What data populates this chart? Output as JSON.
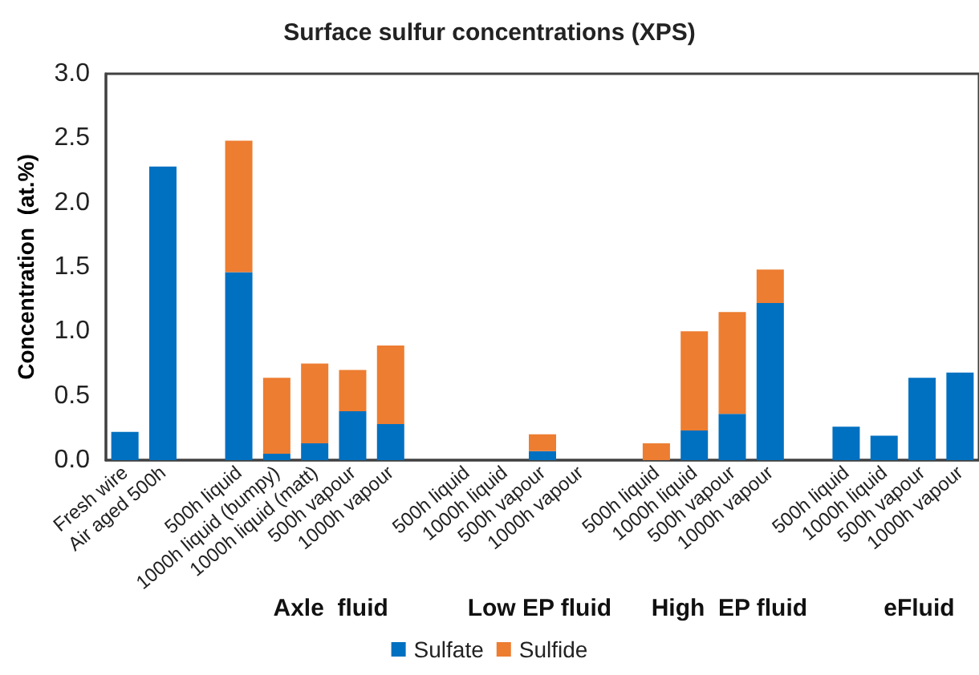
{
  "chart_data": {
    "type": "bar",
    "title": "Surface sulfur concentrations (XPS)",
    "ylabel": "Concentration  (at.%)",
    "categories": [
      "Fresh wire",
      "Air aged 500h",
      null,
      "500h liquid",
      "1000h liquid (bumpy)",
      "1000h liquid (matt)",
      "500h vapour",
      "1000h vapour",
      null,
      "500h liquid",
      "1000h liquid",
      "500h vapour",
      "1000h vapour",
      null,
      "500h liquid",
      "1000h liquid",
      "500h vapour",
      "1000h vapour",
      null,
      "500h liquid",
      "1000h liquid",
      "500h vapour",
      "1000h vapour"
    ],
    "stacked": true,
    "series": [
      {
        "name": "Sulfate",
        "color": "#0070c0",
        "values": [
          0.22,
          2.28,
          null,
          1.46,
          0.05,
          0.13,
          0.38,
          0.28,
          null,
          0,
          0,
          0.07,
          0,
          null,
          0,
          0.23,
          0.36,
          1.22,
          null,
          0.26,
          0.19,
          0.64,
          0.68
        ]
      },
      {
        "name": "Sulfide",
        "color": "#ed7d31",
        "values": [
          0,
          0,
          null,
          1.02,
          0.59,
          0.62,
          0.32,
          0.61,
          null,
          0,
          0,
          0.13,
          0,
          null,
          0.13,
          0.77,
          0.79,
          0.26,
          null,
          0,
          0,
          0,
          0
        ]
      }
    ],
    "ylim": [
      0,
      3
    ],
    "yticks": [
      {
        "value": 0,
        "label": "0.0"
      },
      {
        "value": 0.5,
        "label": "0.5"
      },
      {
        "value": 1,
        "label": "1.0"
      },
      {
        "value": 1.5,
        "label": "1.5"
      },
      {
        "value": 2,
        "label": "2.0"
      },
      {
        "value": 2.5,
        "label": "2.5"
      },
      {
        "value": 3,
        "label": "3.0"
      }
    ],
    "annotations": [
      "Axle  fluid",
      "Low EP fluid",
      "High  EP fluid",
      "eFluid"
    ],
    "legend": "bottom",
    "grid": false
  }
}
